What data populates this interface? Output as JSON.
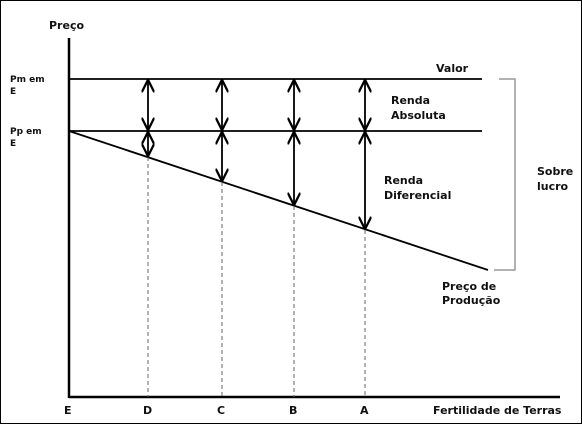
{
  "axes": {
    "y_label": "Preço",
    "x_label": "Fertilidade de Terras"
  },
  "y_ticks": {
    "pm_line1": "Pm em",
    "pm_line2": "E",
    "pp_line1": "Pp em",
    "pp_line2": "E"
  },
  "x_ticks": [
    "E",
    "D",
    "C",
    "B",
    "A"
  ],
  "lines": {
    "valor": "Valor",
    "preco_producao_1": "Preço de",
    "preco_producao_2": "Produção"
  },
  "regions": {
    "renda_absoluta_1": "Renda",
    "renda_absoluta_2": "Absoluta",
    "renda_diferencial_1": "Renda",
    "renda_diferencial_2": "Diferencial",
    "sobre_lucro_1": "Sobre",
    "sobre_lucro_2": "lucro"
  }
}
